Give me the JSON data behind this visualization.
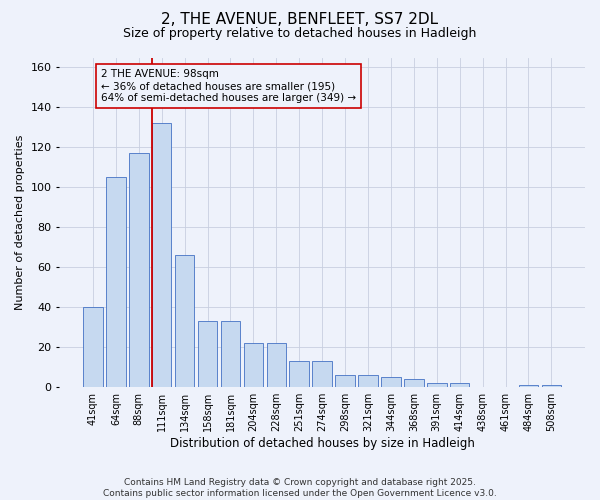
{
  "title_line1": "2, THE AVENUE, BENFLEET, SS7 2DL",
  "title_line2": "Size of property relative to detached houses in Hadleigh",
  "xlabel": "Distribution of detached houses by size in Hadleigh",
  "ylabel": "Number of detached properties",
  "categories": [
    "41sqm",
    "64sqm",
    "88sqm",
    "111sqm",
    "134sqm",
    "158sqm",
    "181sqm",
    "204sqm",
    "228sqm",
    "251sqm",
    "274sqm",
    "298sqm",
    "321sqm",
    "344sqm",
    "368sqm",
    "391sqm",
    "414sqm",
    "438sqm",
    "461sqm",
    "484sqm",
    "508sqm"
  ],
  "values": [
    40,
    105,
    117,
    132,
    66,
    33,
    33,
    22,
    22,
    13,
    13,
    6,
    6,
    5,
    4,
    2,
    2,
    0,
    0,
    1,
    1
  ],
  "bar_color": "#c6d9f0",
  "bar_edge_color": "#4472c4",
  "red_line_color": "#cc0000",
  "background_color": "#eef2fb",
  "grid_color": "#c8cfe0",
  "ylim": [
    0,
    165
  ],
  "yticks": [
    0,
    20,
    40,
    60,
    80,
    100,
    120,
    140,
    160
  ],
  "annotation_text_line1": "2 THE AVENUE: 98sqm",
  "annotation_text_line2": "← 36% of detached houses are smaller (195)",
  "annotation_text_line3": "64% of semi-detached houses are larger (349) →",
  "footer_line1": "Contains HM Land Registry data © Crown copyright and database right 2025.",
  "footer_line2": "Contains public sector information licensed under the Open Government Licence v3.0."
}
